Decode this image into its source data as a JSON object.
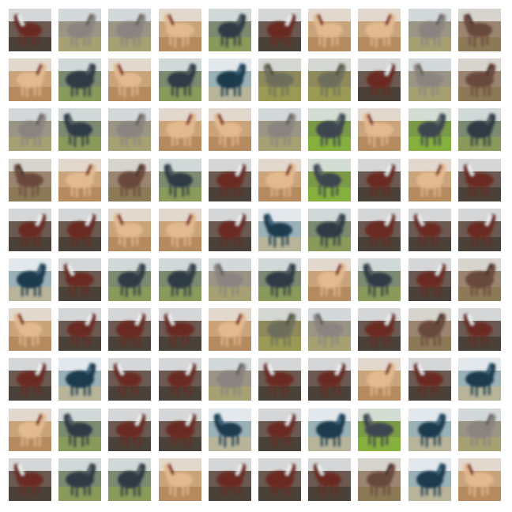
{
  "image": {
    "subject": "sample-grid",
    "rows": 10,
    "cols": 10
  },
  "palettes": {
    "horse": {
      "sky": "#e8ecef",
      "bg": "#6b5a52",
      "ground": "#4a4238",
      "body": "#6b2a20",
      "mane": "#f5f5f5"
    },
    "dark": {
      "sky": "#dfe5ea",
      "bg": "#7d8a72",
      "ground": "#8a9a5a",
      "body": "#2f3a44",
      "mane": "#46525a"
    },
    "tan": {
      "sky": "#e6e2dc",
      "bg": "#c9a37a",
      "ground": "#b58a5e",
      "body": "#e3b98f",
      "mane": "#7a2a22"
    },
    "grey": {
      "sky": "#dde4ea",
      "bg": "#9a9585",
      "ground": "#a6a072",
      "body": "#8a8480",
      "mane": "#5e5a56"
    },
    "green": {
      "sky": "#e4e9ec",
      "bg": "#7b9a48",
      "ground": "#86b03e",
      "body": "#3e4450",
      "mane": "#565f6a"
    },
    "brown": {
      "sky": "#e2e2de",
      "bg": "#9a8670",
      "ground": "#8c7a56",
      "body": "#6a4a3c",
      "mane": "#3c2a22"
    },
    "navy": {
      "sky": "#eef2f4",
      "bg": "#9ab1b7",
      "ground": "#b8b49a",
      "body": "#1f3a4e",
      "mane": "#2c5570"
    },
    "olive": {
      "sky": "#e0e4e6",
      "bg": "#8e8a5c",
      "ground": "#9a9a54",
      "body": "#6e6e5c",
      "mane": "#4a4a3c"
    }
  },
  "cells": [
    "horse",
    "grey",
    "grey",
    "tan",
    "dark",
    "horse",
    "tan",
    "tan",
    "grey",
    "brown",
    "tan",
    "dark",
    "tan",
    "dark",
    "navy",
    "olive",
    "olive",
    "horse",
    "grey",
    "brown",
    "grey",
    "dark",
    "grey",
    "tan",
    "tan",
    "grey",
    "green",
    "tan",
    "green",
    "dark",
    "brown",
    "tan",
    "brown",
    "dark",
    "horse",
    "tan",
    "green",
    "horse",
    "tan",
    "horse",
    "horse",
    "horse",
    "tan",
    "tan",
    "horse",
    "navy",
    "dark",
    "horse",
    "horse",
    "horse",
    "navy",
    "horse",
    "dark",
    "dark",
    "grey",
    "dark",
    "tan",
    "dark",
    "horse",
    "brown",
    "tan",
    "horse",
    "horse",
    "horse",
    "tan",
    "olive",
    "grey",
    "horse",
    "brown",
    "horse",
    "horse",
    "navy",
    "horse",
    "horse",
    "grey",
    "horse",
    "horse",
    "tan",
    "horse",
    "navy",
    "tan",
    "dark",
    "horse",
    "horse",
    "navy",
    "horse",
    "navy",
    "green",
    "navy",
    "grey",
    "horse",
    "dark",
    "dark",
    "tan",
    "horse",
    "horse",
    "horse",
    "brown",
    "navy",
    "tan"
  ]
}
